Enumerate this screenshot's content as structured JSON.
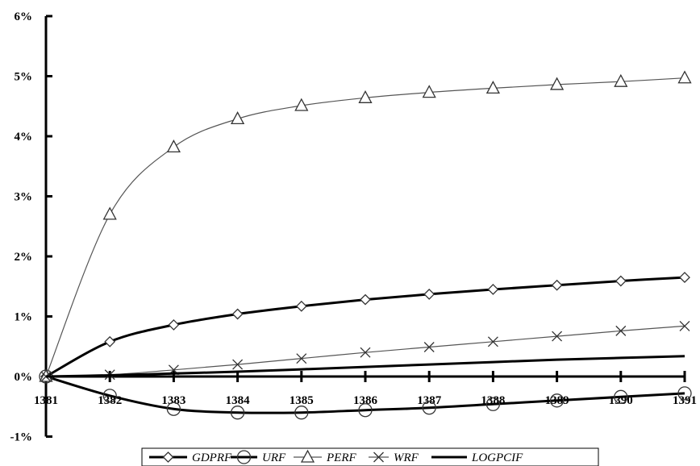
{
  "chart_data": {
    "type": "line",
    "title": "",
    "xlabel": "",
    "ylabel": "",
    "ylim": [
      -1,
      6
    ],
    "y_ticks": [
      "-1%",
      "0%",
      "1%",
      "2%",
      "3%",
      "4%",
      "5%",
      "6%"
    ],
    "categories": [
      "1381",
      "1382",
      "1383",
      "1384",
      "1385",
      "1386",
      "1387",
      "1388",
      "1389",
      "1390",
      "1391"
    ],
    "series": [
      {
        "name": "GDPRF",
        "marker": "diamond",
        "line": "thick",
        "color": "#000000",
        "values": [
          0,
          0.58,
          0.86,
          1.04,
          1.17,
          1.28,
          1.37,
          1.45,
          1.52,
          1.59,
          1.65
        ]
      },
      {
        "name": "URF",
        "marker": "circle",
        "line": "thick",
        "color": "#000000",
        "values": [
          0,
          -0.32,
          -0.54,
          -0.6,
          -0.6,
          -0.56,
          -0.52,
          -0.46,
          -0.4,
          -0.34,
          -0.28
        ]
      },
      {
        "name": "PERF",
        "marker": "triangle",
        "line": "thin",
        "color": "#555555",
        "values": [
          0,
          2.7,
          3.82,
          4.29,
          4.51,
          4.64,
          4.73,
          4.8,
          4.86,
          4.91,
          4.97
        ]
      },
      {
        "name": "WRF",
        "marker": "x",
        "line": "thin",
        "color": "#555555",
        "values": [
          0,
          0.03,
          0.11,
          0.2,
          0.3,
          0.4,
          0.49,
          0.58,
          0.67,
          0.76,
          0.84
        ]
      },
      {
        "name": "LOGPCIF",
        "marker": "none",
        "line": "thick",
        "color": "#000000",
        "values": [
          0,
          0.02,
          0.05,
          0.08,
          0.12,
          0.16,
          0.2,
          0.24,
          0.28,
          0.31,
          0.34
        ]
      }
    ],
    "legend": {
      "placement": "bottom"
    },
    "grid": false
  }
}
